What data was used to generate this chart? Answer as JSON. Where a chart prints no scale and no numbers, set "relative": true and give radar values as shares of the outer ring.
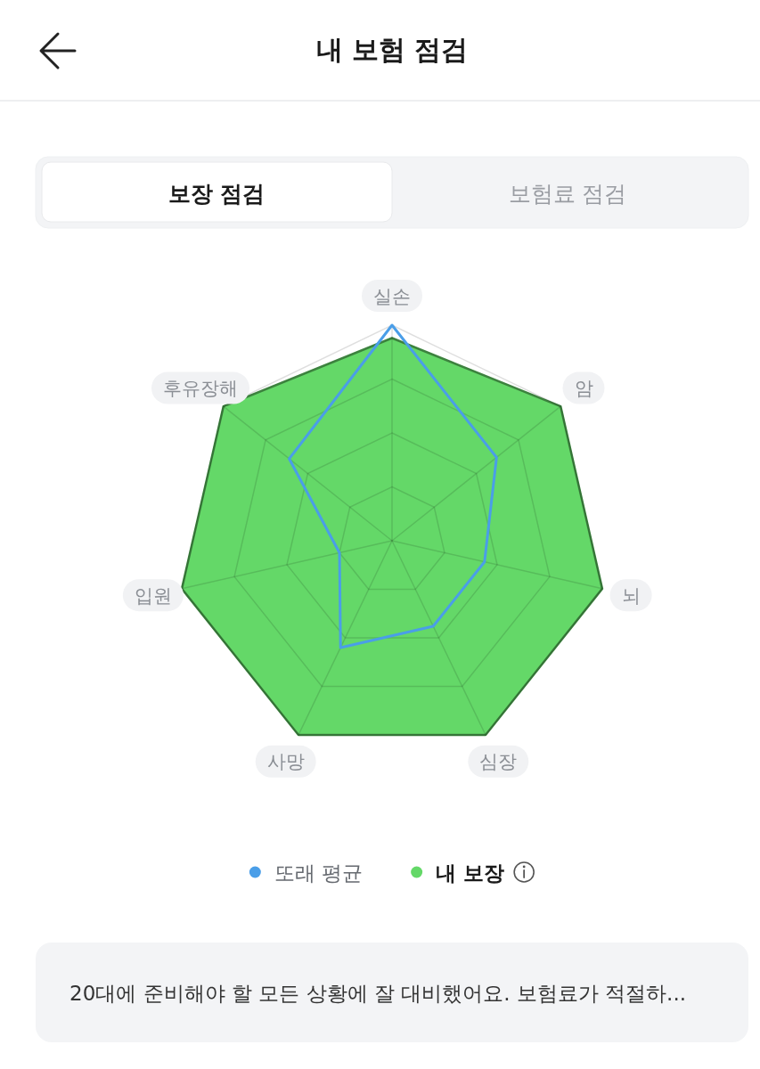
{
  "chart_data": {
    "type": "radar",
    "title": "내 보험 점검",
    "annotations": [
      "보장 점검",
      "보험료 점검",
      "20대에 준비해야 할 모든 상황에 잘 대비했어요. 보험료가 적절하..."
    ],
    "categories": [
      "실손",
      "암",
      "뇌",
      "심장",
      "사망",
      "입원",
      "후유장해"
    ],
    "relative": true,
    "grid": true,
    "legend": "bottom",
    "series": [
      {
        "name": "또래 평균",
        "color": "#4a9ee8",
        "values": [
          1.0,
          0.62,
          0.44,
          0.44,
          0.55,
          0.25,
          0.61
        ]
      },
      {
        "name": "내 보장",
        "color": "#64d868",
        "values": [
          0.94,
          1,
          1,
          1,
          1,
          1,
          1
        ]
      }
    ]
  }
}
